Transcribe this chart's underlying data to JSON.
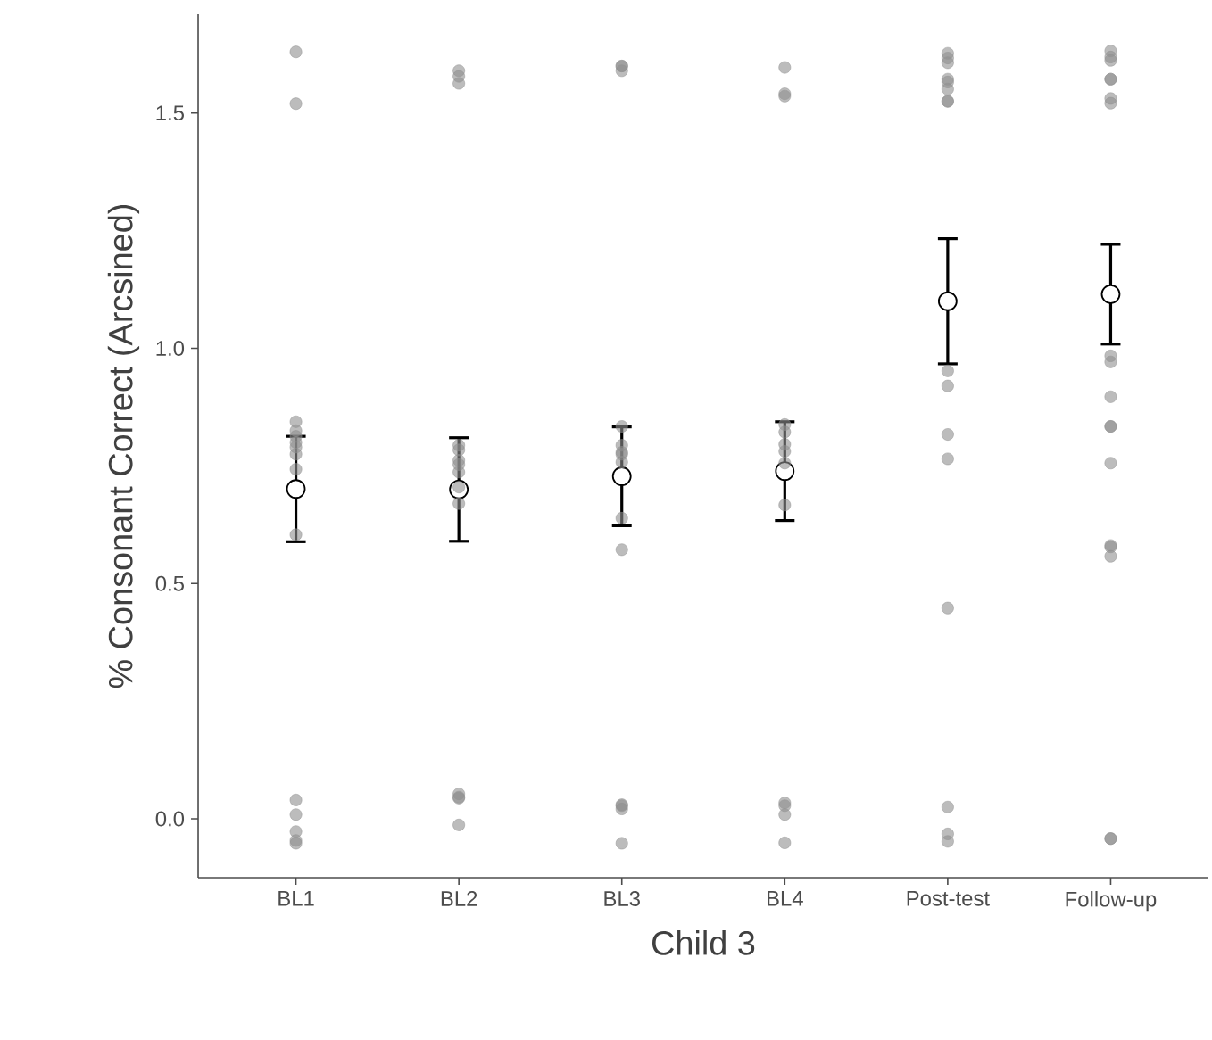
{
  "chart_data": {
    "type": "scatter",
    "xlabel": "Child 3",
    "ylabel": "% Consonant Correct (Arcsined)",
    "categories": [
      "BL1",
      "BL2",
      "BL3",
      "BL4",
      "Post-test",
      "Follow-up"
    ],
    "ylim": [
      -0.125,
      1.71
    ],
    "yticks": [
      {
        "value": 0,
        "label": "0.0"
      },
      {
        "value": 0.5,
        "label": "0.5"
      },
      {
        "value": 1,
        "label": "1.0"
      },
      {
        "value": 1.5,
        "label": "1.5"
      }
    ],
    "marker": "circle",
    "grid": false,
    "series": [
      {
        "color": "#8f8f8f",
        "x": [
          "BL1",
          "BL1",
          "BL1",
          "BL1",
          "BL1",
          "BL1",
          "BL1",
          "BL1",
          "BL1",
          "BL1",
          "BL1",
          "BL1",
          "BL1",
          "BL1",
          "BL1",
          "BL2",
          "BL2",
          "BL2",
          "BL2",
          "BL2",
          "BL2",
          "BL2",
          "BL2",
          "BL2",
          "BL2",
          "BL2",
          "BL2",
          "BL2",
          "BL2",
          "BL3",
          "BL3",
          "BL3",
          "BL3",
          "BL3",
          "BL3",
          "BL3",
          "BL3",
          "BL3",
          "BL3",
          "BL3",
          "BL3",
          "BL3",
          "BL3",
          "BL4",
          "BL4",
          "BL4",
          "BL4",
          "BL4",
          "BL4",
          "BL4",
          "BL4",
          "BL4",
          "BL4",
          "BL4",
          "BL4",
          "BL4",
          "Post-test",
          "Post-test",
          "Post-test",
          "Post-test",
          "Post-test",
          "Post-test",
          "Post-test",
          "Post-test",
          "Post-test",
          "Post-test",
          "Post-test",
          "Post-test",
          "Post-test",
          "Post-test",
          "Post-test",
          "Post-test",
          "Follow-up",
          "Follow-up",
          "Follow-up",
          "Follow-up",
          "Follow-up",
          "Follow-up",
          "Follow-up",
          "Follow-up",
          "Follow-up",
          "Follow-up",
          "Follow-up",
          "Follow-up",
          "Follow-up",
          "Follow-up",
          "Follow-up",
          "Follow-up",
          "Follow-up",
          "Follow-up"
        ],
        "values": [
          1.63,
          1.52,
          0.844,
          0.825,
          0.813,
          0.8,
          0.79,
          0.775,
          0.743,
          0.604,
          0.04,
          0.009,
          -0.027,
          -0.046,
          -0.052,
          1.59,
          1.578,
          1.563,
          0.794,
          0.784,
          0.762,
          0.753,
          0.737,
          0.705,
          0.67,
          0.053,
          0.044,
          0.046,
          -0.013,
          1.6,
          1.59,
          1.6,
          0.834,
          0.794,
          0.779,
          0.775,
          0.758,
          0.639,
          0.572,
          0.028,
          0.021,
          0.03,
          -0.052,
          1.597,
          1.541,
          1.536,
          0.838,
          0.822,
          0.796,
          0.781,
          0.756,
          0.667,
          0.034,
          0.028,
          0.009,
          -0.051,
          1.627,
          1.617,
          1.607,
          1.572,
          1.566,
          1.551,
          1.525,
          1.525,
          0.952,
          0.92,
          0.817,
          0.765,
          0.448,
          0.025,
          -0.032,
          -0.048,
          1.632,
          1.619,
          1.612,
          1.572,
          1.572,
          1.531,
          1.521,
          0.984,
          0.971,
          0.897,
          0.834,
          0.834,
          0.756,
          0.581,
          0.578,
          0.558,
          -0.042,
          -0.042
        ]
      },
      {
        "color": "#ffffff",
        "values": [
          0.701,
          0.7,
          0.728,
          0.739,
          1.1,
          1.115
        ],
        "errors": [
          0.112,
          0.11,
          0.105,
          0.105,
          0.133,
          0.106
        ]
      }
    ]
  }
}
